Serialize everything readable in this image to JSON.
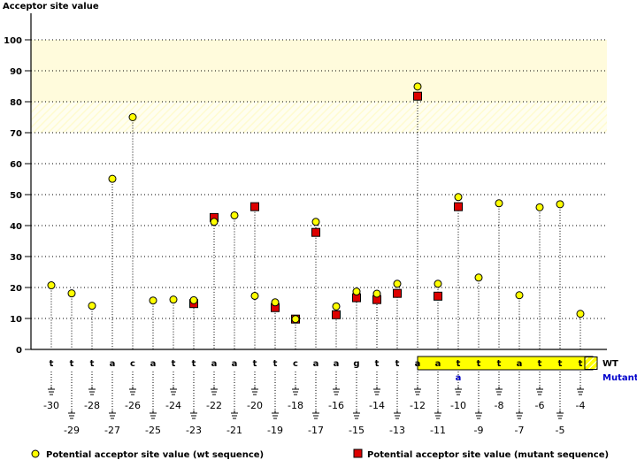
{
  "chart_data": {
    "type": "scatter",
    "title": "",
    "ylabel": "Acceptor site value",
    "xlabel": "",
    "ylim": [
      0,
      100
    ],
    "yticks": [
      "0",
      "10",
      "20",
      "30",
      "40",
      "50",
      "60",
      "70",
      "80",
      "90",
      "100"
    ],
    "grid": true,
    "highlight_band": [
      80,
      100
    ],
    "hatched_band": [
      70,
      80
    ],
    "positions": [
      -30,
      -29,
      -28,
      -27,
      -26,
      -25,
      -24,
      -23,
      -22,
      -21,
      -20,
      -19,
      -18,
      -17,
      -16,
      -15,
      -14,
      -13,
      -12,
      -11,
      -10,
      -9,
      -8,
      -7,
      -6,
      -5,
      -4
    ],
    "position_labels": [
      "-30",
      "-29",
      "-28",
      "-27",
      "-26",
      "-25",
      "-24",
      "-23",
      "-22",
      "-21",
      "-20",
      "-19",
      "-18",
      "-17",
      "-16",
      "-15",
      "-14",
      "-13",
      "-12",
      "-11",
      "-10",
      "-9",
      "-8",
      "-7",
      "-6",
      "-5",
      "-4"
    ],
    "wt_sequence": [
      "t",
      "t",
      "t",
      "a",
      "c",
      "a",
      "t",
      "t",
      "a",
      "a",
      "t",
      "t",
      "c",
      "a",
      "a",
      "g",
      "t",
      "t",
      "a",
      "a",
      "t",
      "t",
      "t",
      "a",
      "t",
      "t",
      "t"
    ],
    "mutant_sequence": [
      null,
      null,
      null,
      null,
      null,
      null,
      null,
      null,
      null,
      null,
      null,
      null,
      null,
      null,
      null,
      null,
      null,
      null,
      null,
      null,
      "a",
      null,
      null,
      null,
      null,
      null,
      null
    ],
    "series": [
      {
        "name": "Potential acceptor site value (wt sequence)",
        "marker": "circle",
        "color": "#ffff00",
        "values": [
          20.7,
          18.1,
          14.1,
          55.1,
          75.0,
          15.8,
          16.1,
          15.9,
          41.2,
          43.3,
          17.3,
          15.2,
          9.8,
          41.2,
          13.9,
          18.7,
          18.0,
          21.2,
          84.9,
          21.2,
          49.2,
          23.2,
          47.2,
          17.5,
          45.9,
          46.9,
          11.5
        ]
      },
      {
        "name": "Potential acceptor site value (mutant sequence)",
        "marker": "square",
        "color": "#dd0000",
        "values": [
          null,
          null,
          null,
          null,
          null,
          null,
          null,
          14.8,
          42.6,
          null,
          46.1,
          13.5,
          9.8,
          37.8,
          11.2,
          16.7,
          16.1,
          18.1,
          81.8,
          17.2,
          46.1,
          null,
          null,
          null,
          null,
          null,
          null
        ]
      }
    ],
    "sequence_labels": {
      "wt": "WT",
      "mutant": "Mutant"
    },
    "highlighted_region_positions": [
      -11,
      -4
    ],
    "legend_placement": "bottom"
  },
  "colors": {
    "band": "#fffbdc",
    "box": "#ffff00",
    "mutant_text": "#0000cc"
  }
}
